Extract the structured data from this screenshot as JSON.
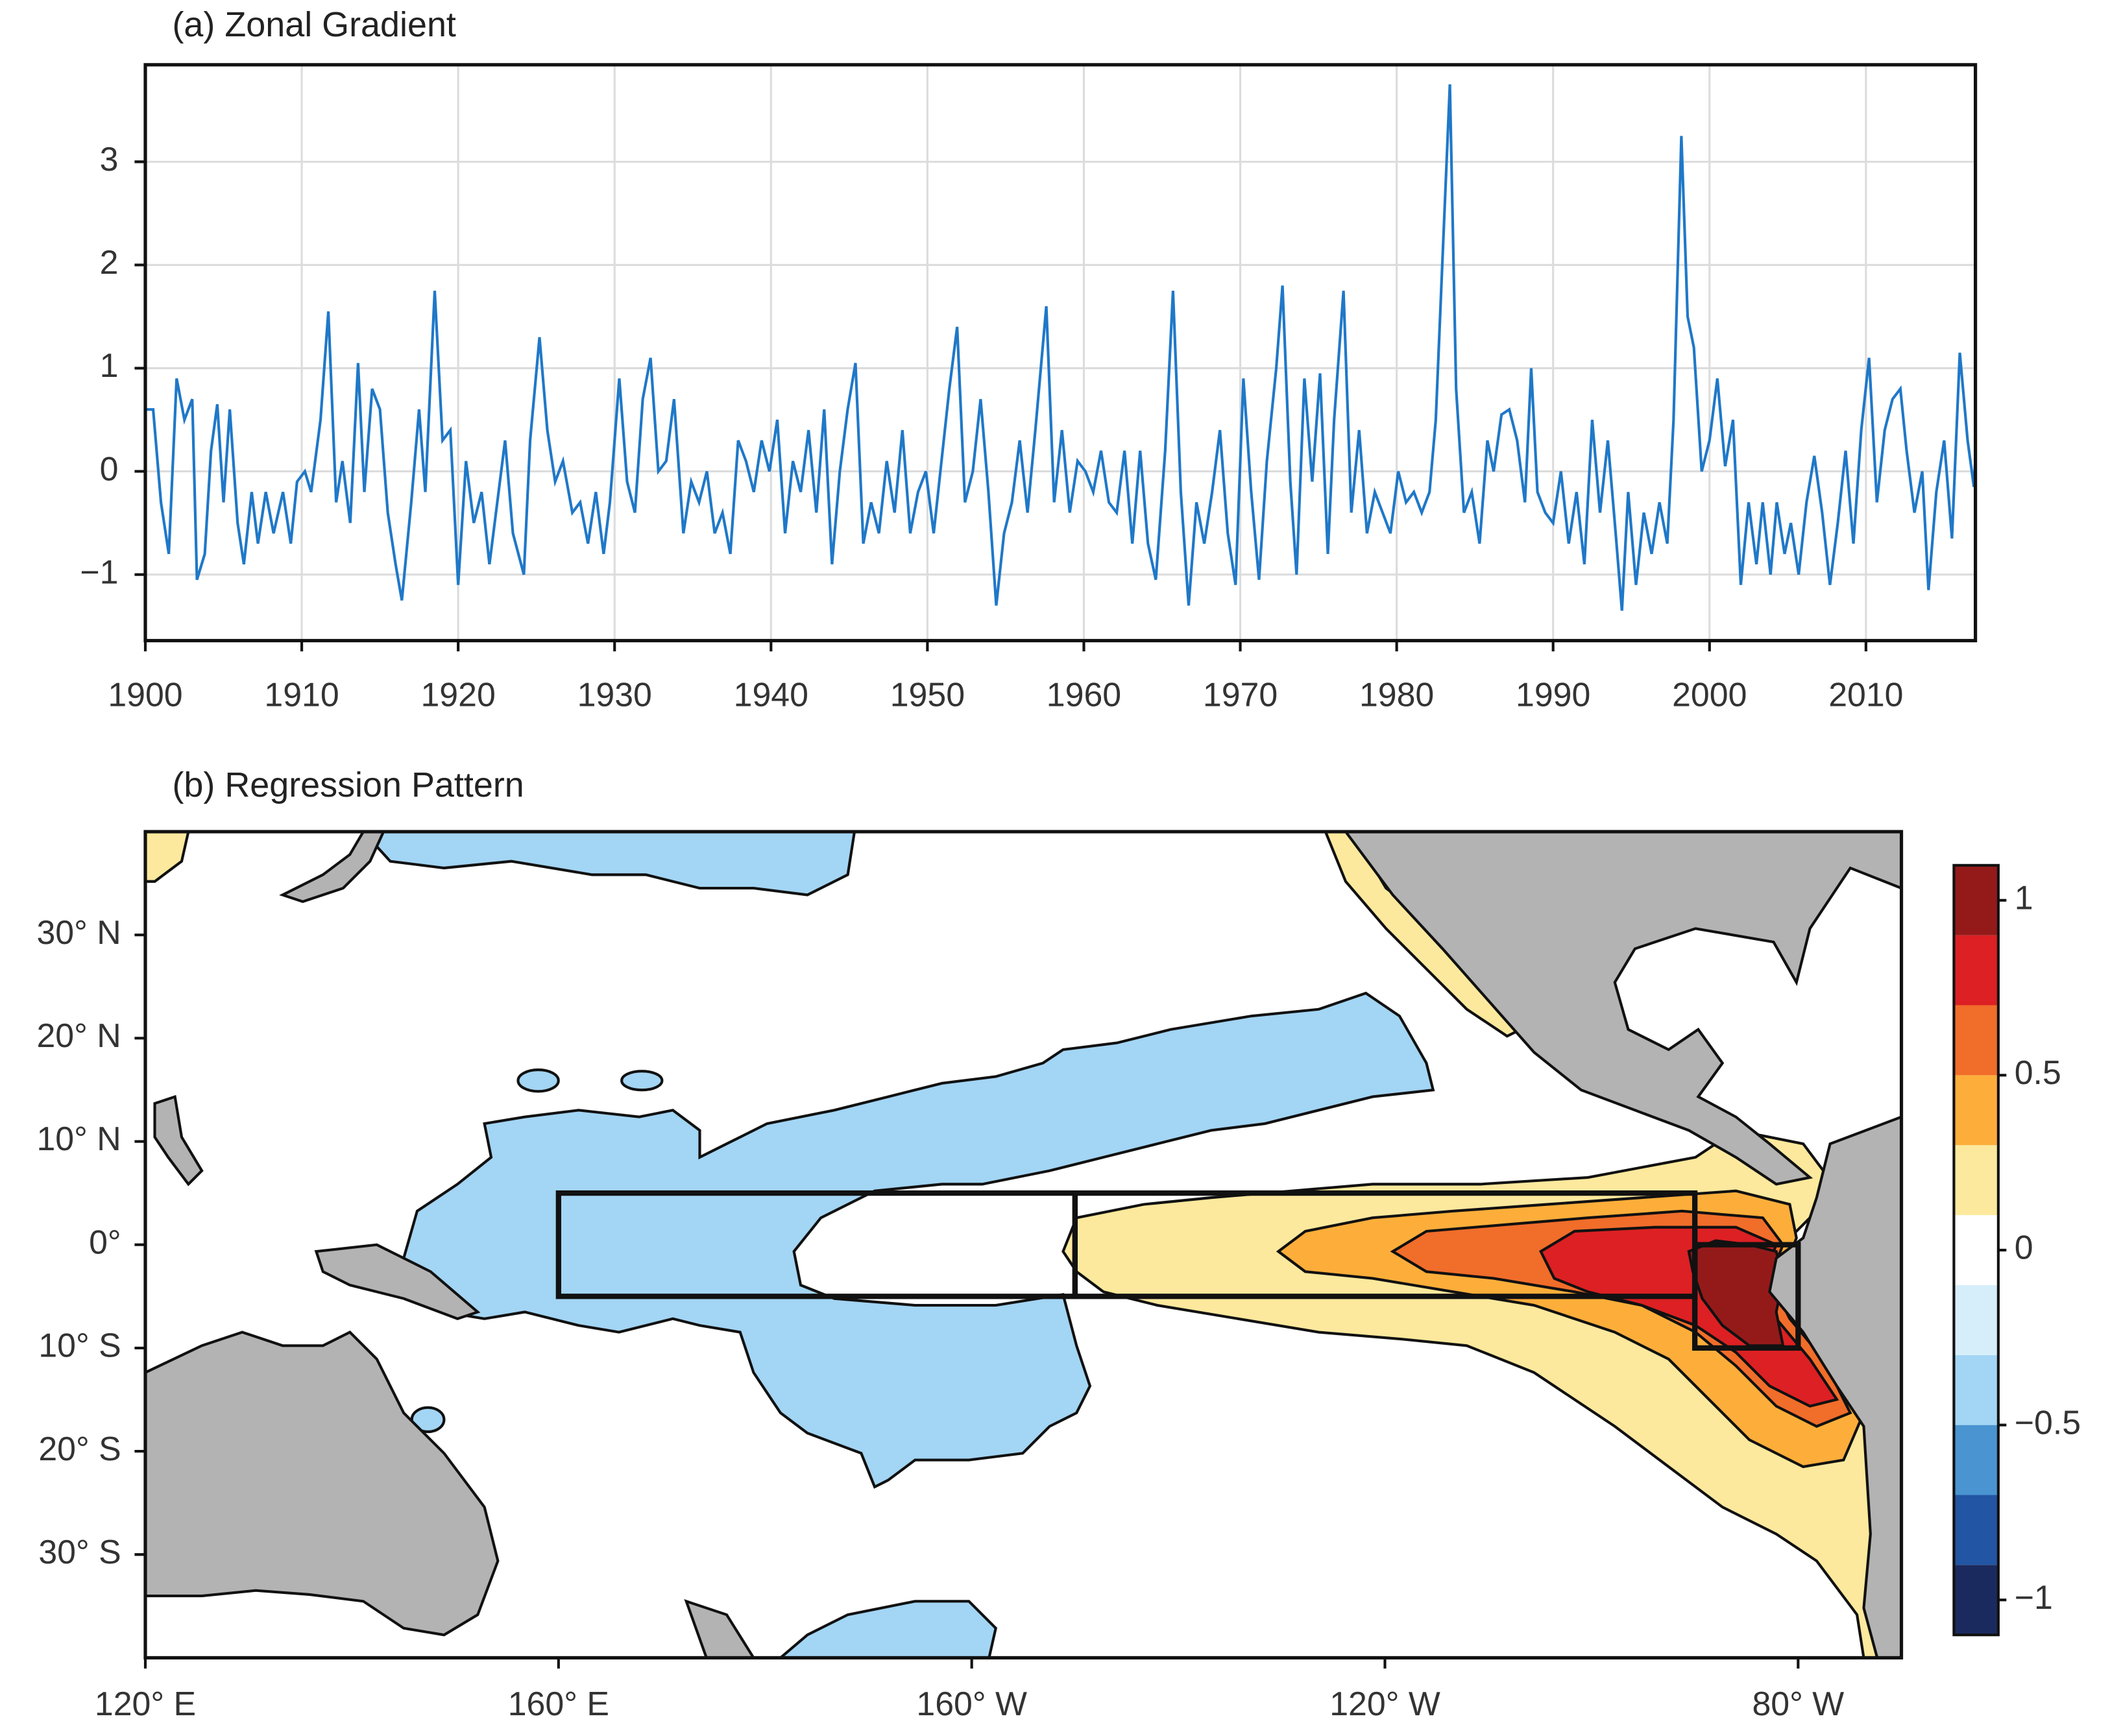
{
  "chart_data": [
    {
      "type": "line",
      "title": "(a) Zonal Gradient",
      "color": "#1f78c8",
      "grid": true,
      "xlim": [
        1900,
        2017
      ],
      "xticks": [
        1900,
        1910,
        1920,
        1930,
        1940,
        1950,
        1960,
        1970,
        1980,
        1990,
        2000,
        2010
      ],
      "ylim": [
        -1.64,
        3.94
      ],
      "yticks": [
        {
          "value": -1,
          "label": "−1"
        },
        0,
        1,
        2,
        3
      ],
      "x": [
        1900,
        1900.5,
        1901,
        1901.5,
        1902,
        1902.5,
        1903,
        1903.3,
        1903.8,
        1904.2,
        1904.6,
        1905,
        1905.4,
        1905.9,
        1906.3,
        1906.8,
        1907.2,
        1907.7,
        1908.2,
        1908.8,
        1909.3,
        1909.7,
        1910.2,
        1910.6,
        1911.2,
        1911.7,
        1912.2,
        1912.6,
        1913.1,
        1913.6,
        1914,
        1914.5,
        1915,
        1915.5,
        1916,
        1916.4,
        1917,
        1917.5,
        1917.9,
        1918.5,
        1919,
        1919.5,
        1920,
        1920.5,
        1921,
        1921.5,
        1922,
        1922.5,
        1923,
        1923.5,
        1924.2,
        1924.6,
        1925.2,
        1925.7,
        1926.2,
        1926.7,
        1927.3,
        1927.8,
        1928.3,
        1928.8,
        1929.3,
        1929.7,
        1930.3,
        1930.8,
        1931.3,
        1931.8,
        1932.3,
        1932.8,
        1933.3,
        1933.8,
        1934.4,
        1934.9,
        1935.4,
        1935.9,
        1936.4,
        1936.9,
        1937.4,
        1937.9,
        1938.4,
        1938.9,
        1939.4,
        1939.9,
        1940.4,
        1940.9,
        1941.4,
        1941.9,
        1942.4,
        1942.9,
        1943.4,
        1943.9,
        1944.4,
        1944.9,
        1945.4,
        1945.9,
        1946.4,
        1946.9,
        1947.4,
        1947.9,
        1948.4,
        1948.9,
        1949.4,
        1949.9,
        1950.4,
        1950.9,
        1951.4,
        1951.9,
        1952.4,
        1952.9,
        1953.4,
        1953.9,
        1954.4,
        1954.9,
        1955.4,
        1955.9,
        1956.4,
        1956.9,
        1957.6,
        1958.1,
        1958.6,
        1959.1,
        1959.6,
        1960.1,
        1960.6,
        1961.1,
        1961.6,
        1962.1,
        1962.6,
        1963.1,
        1963.6,
        1964.1,
        1964.6,
        1965.2,
        1965.7,
        1966.2,
        1966.7,
        1967.2,
        1967.7,
        1968.2,
        1968.7,
        1969.2,
        1969.7,
        1970.2,
        1970.7,
        1971.2,
        1971.7,
        1972.3,
        1972.7,
        1973.2,
        1973.6,
        1974.1,
        1974.6,
        1975.1,
        1975.6,
        1976,
        1976.6,
        1977.1,
        1977.6,
        1978.1,
        1978.6,
        1979.1,
        1979.6,
        1980.1,
        1980.6,
        1981.1,
        1981.6,
        1982.1,
        1982.5,
        1982.9,
        1983.4,
        1983.8,
        1984.3,
        1984.8,
        1985.3,
        1985.8,
        1986.2,
        1986.7,
        1987.2,
        1987.7,
        1988.2,
        1988.6,
        1989,
        1989.5,
        1990,
        1990.5,
        1991,
        1991.5,
        1992,
        1992.5,
        1993,
        1993.5,
        1994,
        1994.4,
        1994.8,
        1995.3,
        1995.8,
        1996.3,
        1996.8,
        1997.3,
        1997.7,
        1998.2,
        1998.6,
        1999,
        1999.5,
        2000,
        2000.5,
        2001,
        2001.5,
        2002,
        2002.5,
        2003,
        2003.4,
        2003.9,
        2004.3,
        2004.8,
        2005.2,
        2005.7,
        2006.2,
        2006.7,
        2007.2,
        2007.7,
        2008.2,
        2008.7,
        2009.2,
        2009.7,
        2010.2,
        2010.7,
        2011.2,
        2011.7,
        2012.2,
        2012.6,
        2013.1,
        2013.6,
        2014,
        2014.5,
        2015,
        2015.5,
        2016,
        2016.5,
        2016.9,
        2017
      ],
      "values": [
        0.6,
        0.6,
        -0.3,
        -0.8,
        0.9,
        0.5,
        0.7,
        -1.05,
        -0.8,
        0.2,
        0.65,
        -0.3,
        0.6,
        -0.5,
        -0.9,
        -0.2,
        -0.7,
        -0.2,
        -0.6,
        -0.2,
        -0.7,
        -0.1,
        0,
        -0.2,
        0.5,
        1.55,
        -0.3,
        0.1,
        -0.5,
        1.05,
        -0.2,
        0.8,
        0.6,
        -0.4,
        -0.9,
        -1.25,
        -0.3,
        0.6,
        -0.2,
        1.75,
        0.3,
        0.4,
        -1.1,
        0.1,
        -0.5,
        -0.2,
        -0.9,
        -0.3,
        0.3,
        -0.6,
        -1,
        0.3,
        1.3,
        0.4,
        -0.1,
        0.1,
        -0.4,
        -0.3,
        -0.7,
        -0.2,
        -0.8,
        -0.3,
        0.9,
        -0.1,
        -0.4,
        0.7,
        1.1,
        0,
        0.1,
        0.7,
        -0.6,
        -0.1,
        -0.3,
        0,
        -0.6,
        -0.4,
        -0.8,
        0.3,
        0.1,
        -0.2,
        0.3,
        0,
        0.5,
        -0.6,
        0.1,
        -0.2,
        0.4,
        -0.4,
        0.6,
        -0.9,
        0,
        0.6,
        1.05,
        -0.7,
        -0.3,
        -0.6,
        0.1,
        -0.4,
        0.4,
        -0.6,
        -0.2,
        0,
        -0.6,
        0.1,
        0.8,
        1.4,
        -0.3,
        0,
        0.7,
        -0.2,
        -1.3,
        -0.6,
        -0.3,
        0.3,
        -0.4,
        0.4,
        1.6,
        -0.3,
        0.4,
        -0.4,
        0.1,
        0,
        -0.2,
        0.2,
        -0.3,
        -0.4,
        0.2,
        -0.7,
        0.2,
        -0.7,
        -1.05,
        0.2,
        1.75,
        -0.2,
        -1.3,
        -0.3,
        -0.7,
        -0.2,
        0.4,
        -0.6,
        -1.1,
        0.9,
        -0.2,
        -1.05,
        0.1,
        1,
        1.8,
        -0.1,
        -1,
        0.9,
        -0.1,
        0.95,
        -0.8,
        0.5,
        1.75,
        -0.4,
        0.4,
        -0.6,
        -0.2,
        -0.4,
        -0.6,
        0,
        -0.3,
        -0.2,
        -0.4,
        -0.2,
        0.5,
        1.95,
        3.75,
        0.8,
        -0.4,
        -0.2,
        -0.7,
        0.3,
        0,
        0.55,
        0.6,
        0.3,
        -0.3,
        1,
        -0.2,
        -0.4,
        -0.5,
        0,
        -0.7,
        -0.2,
        -0.9,
        0.5,
        -0.4,
        0.3,
        -0.6,
        -1.35,
        -0.2,
        -1.1,
        -0.4,
        -0.8,
        -0.3,
        -0.7,
        0.5,
        3.25,
        1.5,
        1.2,
        0,
        0.3,
        0.9,
        0.05,
        0.5,
        -1.1,
        -0.3,
        -0.9,
        -0.3,
        -1,
        -0.3,
        -0.8,
        -0.5,
        -1,
        -0.3,
        0.15,
        -0.4,
        -1.1,
        -0.5,
        0.2,
        -0.7,
        0.4,
        1.1,
        -0.3,
        0.4,
        0.7,
        0.8,
        0.2,
        -0.4,
        0,
        -1.15,
        -0.2,
        0.3,
        -0.65,
        1.15,
        0.3,
        -0.15,
        0.15
      ]
    },
    {
      "type": "contour_map",
      "title": "(b) Regression Pattern",
      "xlim": [
        120,
        290
      ],
      "xticks": [
        {
          "value": 120,
          "label": "120° E"
        },
        {
          "value": 160,
          "label": "160° E"
        },
        {
          "value": 200,
          "label": "160° W"
        },
        {
          "value": 240,
          "label": "120° W"
        },
        {
          "value": 280,
          "label": "80° W"
        }
      ],
      "ylim": [
        -40,
        40
      ],
      "yticks": [
        {
          "value": 30,
          "label": "30° N"
        },
        {
          "value": 20,
          "label": "20° N"
        },
        {
          "value": 10,
          "label": "10° N"
        },
        {
          "value": 0,
          "label": "0°"
        },
        {
          "value": -10,
          "label": "10° S"
        },
        {
          "value": -20,
          "label": "20° S"
        },
        {
          "value": -30,
          "label": "30° S"
        }
      ],
      "regions": [
        [
          160,
          210,
          -5,
          5
        ],
        [
          210,
          270,
          -5,
          5
        ],
        [
          270,
          280,
          -10,
          0
        ]
      ],
      "colorbar": {
        "levels": [
          -1.1,
          -0.9,
          -0.7,
          -0.5,
          -0.3,
          -0.1,
          0.1,
          0.3,
          0.5,
          0.7,
          0.9,
          1.1
        ],
        "colors": [
          "#1b2a5e",
          "#2255a4",
          "#4a94d1",
          "#a3d5f4",
          "#d6eefa",
          "#ffffff",
          "#fde99d",
          "#fdae3a",
          "#f16d2a",
          "#dc2023",
          "#941a1a"
        ],
        "ticks": [
          1,
          0.5,
          0,
          {
            "value": -0.5,
            "label": "−0.5"
          },
          {
            "value": -1,
            "label": "−1"
          }
        ]
      }
    }
  ]
}
